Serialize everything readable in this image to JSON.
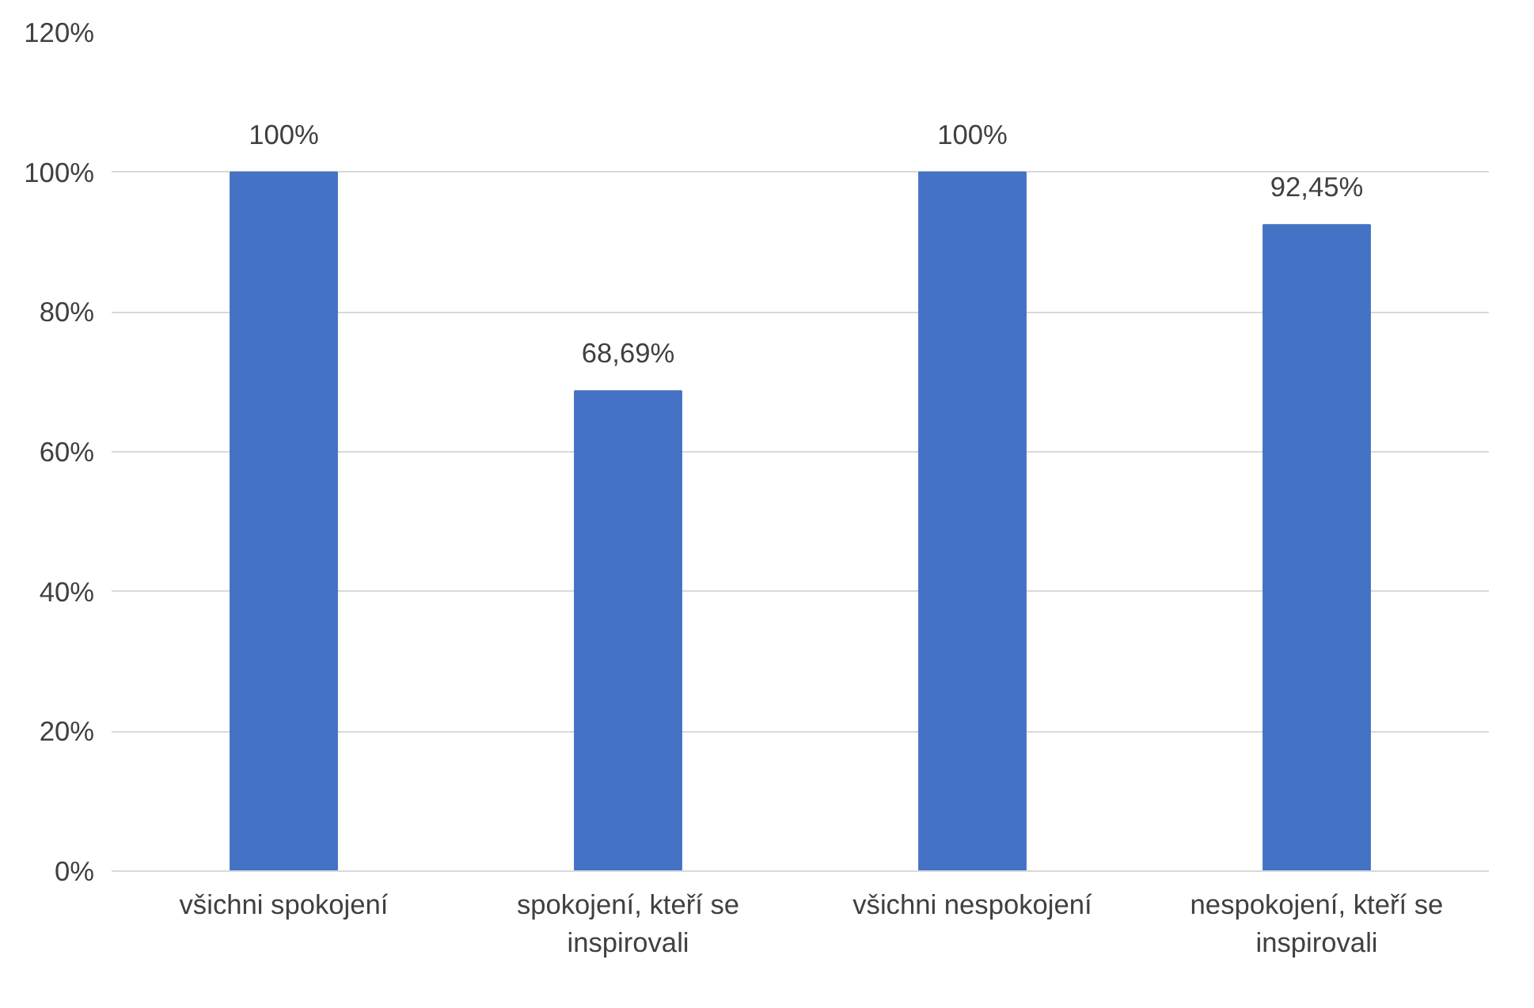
{
  "chart_data": {
    "type": "bar",
    "categories": [
      "všichni spokojení",
      "spokojení, kteří se inspirovali",
      "všichni nespokojení",
      "nespokojení, kteří se inspirovali"
    ],
    "values": [
      100,
      68.69,
      100,
      92.45
    ],
    "value_labels": [
      "100%",
      "68,69%",
      "100%",
      "92,45%"
    ],
    "color": "#4472c4",
    "ylim": [
      0,
      120
    ],
    "yticks": [
      {
        "value": 0,
        "label": "0%"
      },
      {
        "value": 20,
        "label": "20%"
      },
      {
        "value": 40,
        "label": "40%"
      },
      {
        "value": 60,
        "label": "60%"
      },
      {
        "value": 80,
        "label": "80%"
      },
      {
        "value": 100,
        "label": "100%"
      },
      {
        "value": 120,
        "label": "120%"
      }
    ],
    "grid": "y"
  }
}
